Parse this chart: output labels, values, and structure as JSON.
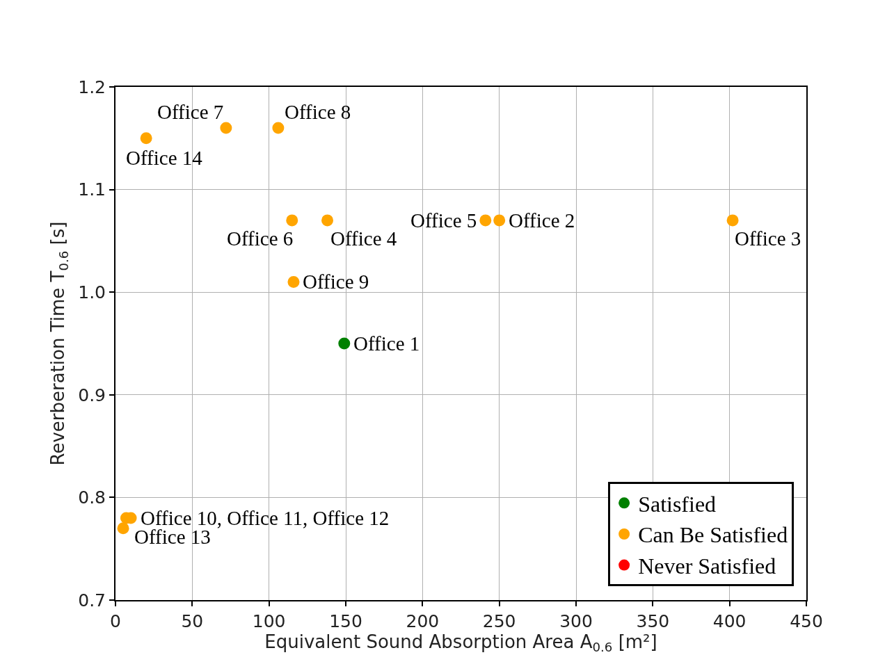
{
  "chart_data": {
    "type": "scatter",
    "xlabel": "Equivalent Sound Absorption Area A$_{0.6}$ [m²]",
    "ylabel": "Reverberation Time T$_{0.6}$ [s]",
    "xlim": [
      0,
      450
    ],
    "xticks": [
      0,
      50,
      100,
      150,
      200,
      250,
      300,
      350,
      400,
      450
    ],
    "ylim": [
      0.7,
      1.2
    ],
    "yticks": [
      0.7,
      0.8,
      0.9,
      {
        "value": 1,
        "label": "1.0"
      },
      1.1,
      1.2
    ],
    "grid": true,
    "legend": "bottom right",
    "marker": "circle",
    "series": [
      {
        "name": "Satisfied",
        "color": "#008000",
        "x": [
          149
        ],
        "values": [
          0.95
        ]
      },
      {
        "name": "Can Be Satisfied",
        "color": "#ffa500",
        "x": [
          250,
          402,
          138,
          241,
          115,
          72,
          106,
          116,
          7,
          10,
          5,
          20
        ],
        "values": [
          1.07,
          1.07,
          1.07,
          1.07,
          1.07,
          1.16,
          1.16,
          1.01,
          0.78,
          0.78,
          0.77,
          1.15
        ]
      },
      {
        "name": "Never Satisfied",
        "color": "#ff0000"
      }
    ],
    "annotations": [
      {
        "text": "Office 1",
        "x": 149,
        "y": 0.95
      },
      {
        "text": "Office 2",
        "x": 250,
        "y": 1.07
      },
      {
        "text": "Office 3",
        "x": 402,
        "y": 1.07
      },
      {
        "text": "Office 4",
        "x": 138,
        "y": 1.07
      },
      {
        "text": "Office 5",
        "x": 241,
        "y": 1.07
      },
      {
        "text": "Office 6",
        "x": 115,
        "y": 1.07
      },
      {
        "text": "Office 7",
        "x": 72,
        "y": 1.16
      },
      {
        "text": "Office 8",
        "x": 106,
        "y": 1.16
      },
      {
        "text": "Office 9",
        "x": 116,
        "y": 1.01
      },
      {
        "text": "Office 10, Office 11, Office 12",
        "x": 10,
        "y": 0.78
      },
      {
        "text": "Office 13",
        "x": 5,
        "y": 0.77
      },
      {
        "text": "Office 14",
        "x": 20,
        "y": 1.15
      }
    ]
  }
}
